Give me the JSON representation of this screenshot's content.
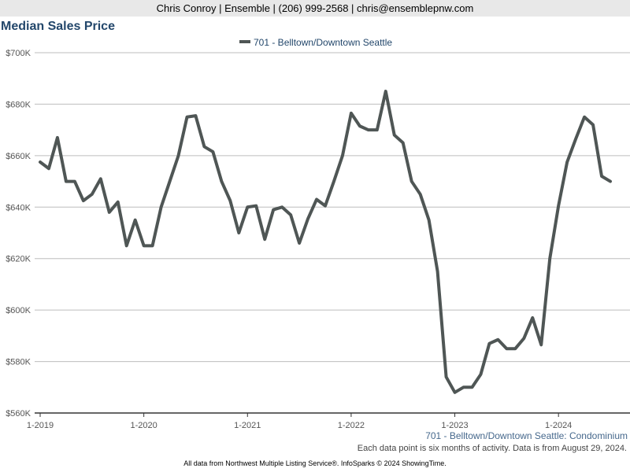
{
  "header": {
    "contact": "Chris Conroy | Ensemble | (206) 999-2568 | chris@ensemblepnw.com"
  },
  "colors": {
    "line": "#4f5655",
    "title": "#23476b",
    "subtitle": "#46688c",
    "grid": "#bdbdbd",
    "axis": "#333333"
  },
  "chart_data": {
    "type": "line",
    "title": "Median Sales Price",
    "legend": "701 - Belltown/Downtown Seattle",
    "legend_position": "top-center",
    "subtitle": "701 - Belltown/Downtown Seattle: Condominium",
    "xlabel": "",
    "ylabel": "",
    "ylim": [
      560000,
      700000
    ],
    "yticks": [
      560000,
      580000,
      600000,
      620000,
      640000,
      660000,
      680000,
      700000
    ],
    "ytick_labels": [
      "$560K",
      "$580K",
      "$600K",
      "$620K",
      "$640K",
      "$660K",
      "$680K",
      "$700K"
    ],
    "xticks": [
      {
        "label": "1-2019",
        "month_index": 0
      },
      {
        "label": "1-2020",
        "month_index": 12
      },
      {
        "label": "1-2021",
        "month_index": 24
      },
      {
        "label": "1-2022",
        "month_index": 36
      },
      {
        "label": "1-2023",
        "month_index": 48
      },
      {
        "label": "1-2024",
        "month_index": 60
      }
    ],
    "grid": true,
    "series": [
      {
        "name": "701 - Belltown/Downtown Seattle",
        "start": "1-2019",
        "values": [
          657500,
          655000,
          667000,
          650000,
          650000,
          642500,
          645000,
          651000,
          638000,
          642000,
          625000,
          635000,
          625000,
          625000,
          640000,
          650000,
          660000,
          675000,
          675500,
          663500,
          661500,
          650000,
          642500,
          630000,
          640000,
          640500,
          627500,
          639000,
          640000,
          637000,
          626000,
          635500,
          643000,
          640500,
          650000,
          660000,
          676500,
          671500,
          670000,
          670000,
          685000,
          668000,
          665000,
          650000,
          645000,
          635000,
          615000,
          574000,
          568000,
          570000,
          570000,
          575000,
          587000,
          588500,
          585000,
          585000,
          589000,
          597000,
          586500,
          620000,
          640500,
          657500,
          666500,
          675000,
          672000,
          652000,
          650000
        ]
      }
    ]
  },
  "footer": {
    "note": "Each data point is six months of activity. Data is from August 29, 2024.",
    "source": "All data from Northwest Multiple Listing Service®. InfoSparks © 2024 ShowingTime."
  }
}
